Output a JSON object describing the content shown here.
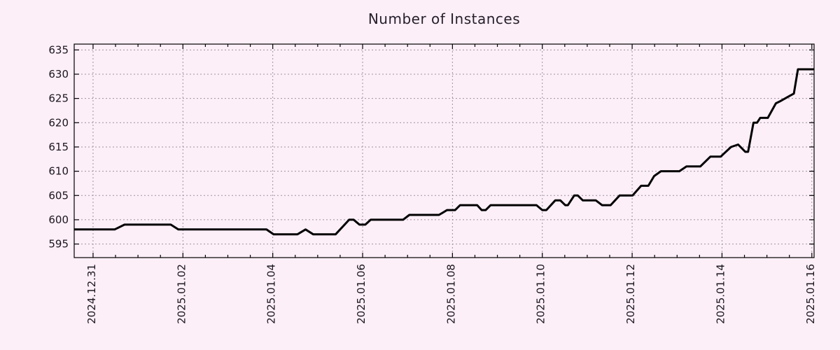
{
  "title": "Number of Instances",
  "colors": {
    "background": "#fdeff8",
    "line": "#000000",
    "grid": "#9c929f",
    "border": "#000000",
    "text": "#241f2b"
  },
  "chart_data": {
    "type": "line",
    "title": "Number of Instances",
    "xlabel": "",
    "ylabel": "",
    "grid": "dotted, on both axes at major ticks",
    "legend_position": "none",
    "x_unit": "days since 2024-12-31 00:00",
    "xlim": [
      -0.42,
      16.05
    ],
    "ylim": [
      592.2,
      636.2
    ],
    "x_ticks": [
      {
        "t": 0,
        "label": "2024.12.31"
      },
      {
        "t": 2,
        "label": "2025.01.02"
      },
      {
        "t": 4,
        "label": "2025.01.04"
      },
      {
        "t": 6,
        "label": "2025.01.06"
      },
      {
        "t": 8,
        "label": "2025.01.08"
      },
      {
        "t": 10,
        "label": "2025.01.10"
      },
      {
        "t": 12,
        "label": "2025.01.12"
      },
      {
        "t": 14,
        "label": "2025.01.14"
      },
      {
        "t": 16,
        "label": "2025.01.16"
      }
    ],
    "x_minor_tick_interval": 0.5,
    "y_ticks": [
      595,
      600,
      605,
      610,
      615,
      620,
      625,
      630,
      635
    ],
    "series": [
      {
        "name": "instances",
        "color": "#000000",
        "stroke_width": 3,
        "points": [
          [
            -0.42,
            598
          ],
          [
            0.48,
            598
          ],
          [
            0.7,
            599
          ],
          [
            1.73,
            599
          ],
          [
            1.9,
            598
          ],
          [
            3.86,
            598
          ],
          [
            4.02,
            597
          ],
          [
            4.55,
            597
          ],
          [
            4.73,
            598
          ],
          [
            4.9,
            597
          ],
          [
            5.4,
            597
          ],
          [
            5.7,
            600
          ],
          [
            5.8,
            600
          ],
          [
            5.93,
            599
          ],
          [
            6.06,
            599
          ],
          [
            6.18,
            600
          ],
          [
            6.9,
            600
          ],
          [
            7.04,
            601
          ],
          [
            7.7,
            601
          ],
          [
            7.88,
            602
          ],
          [
            8.06,
            602
          ],
          [
            8.17,
            603
          ],
          [
            8.55,
            603
          ],
          [
            8.65,
            602
          ],
          [
            8.74,
            602
          ],
          [
            8.85,
            603
          ],
          [
            9.87,
            603
          ],
          [
            10.0,
            602
          ],
          [
            10.09,
            602
          ],
          [
            10.29,
            604
          ],
          [
            10.4,
            604
          ],
          [
            10.51,
            603
          ],
          [
            10.57,
            603
          ],
          [
            10.71,
            605
          ],
          [
            10.79,
            605
          ],
          [
            10.9,
            604
          ],
          [
            11.19,
            604
          ],
          [
            11.33,
            603
          ],
          [
            11.52,
            603
          ],
          [
            11.72,
            605
          ],
          [
            12.01,
            605
          ],
          [
            12.2,
            607
          ],
          [
            12.36,
            607
          ],
          [
            12.49,
            609
          ],
          [
            12.64,
            610
          ],
          [
            13.05,
            610
          ],
          [
            13.21,
            611
          ],
          [
            13.52,
            611
          ],
          [
            13.74,
            613
          ],
          [
            13.97,
            613
          ],
          [
            14.2,
            615
          ],
          [
            14.36,
            615.5
          ],
          [
            14.52,
            614
          ],
          [
            14.58,
            614
          ],
          [
            14.7,
            620
          ],
          [
            14.78,
            620
          ],
          [
            14.85,
            621
          ],
          [
            15.02,
            621
          ],
          [
            15.2,
            624
          ],
          [
            15.31,
            624.5
          ],
          [
            15.5,
            625.5
          ],
          [
            15.6,
            626
          ],
          [
            15.69,
            631
          ],
          [
            16.05,
            631
          ]
        ]
      }
    ]
  }
}
